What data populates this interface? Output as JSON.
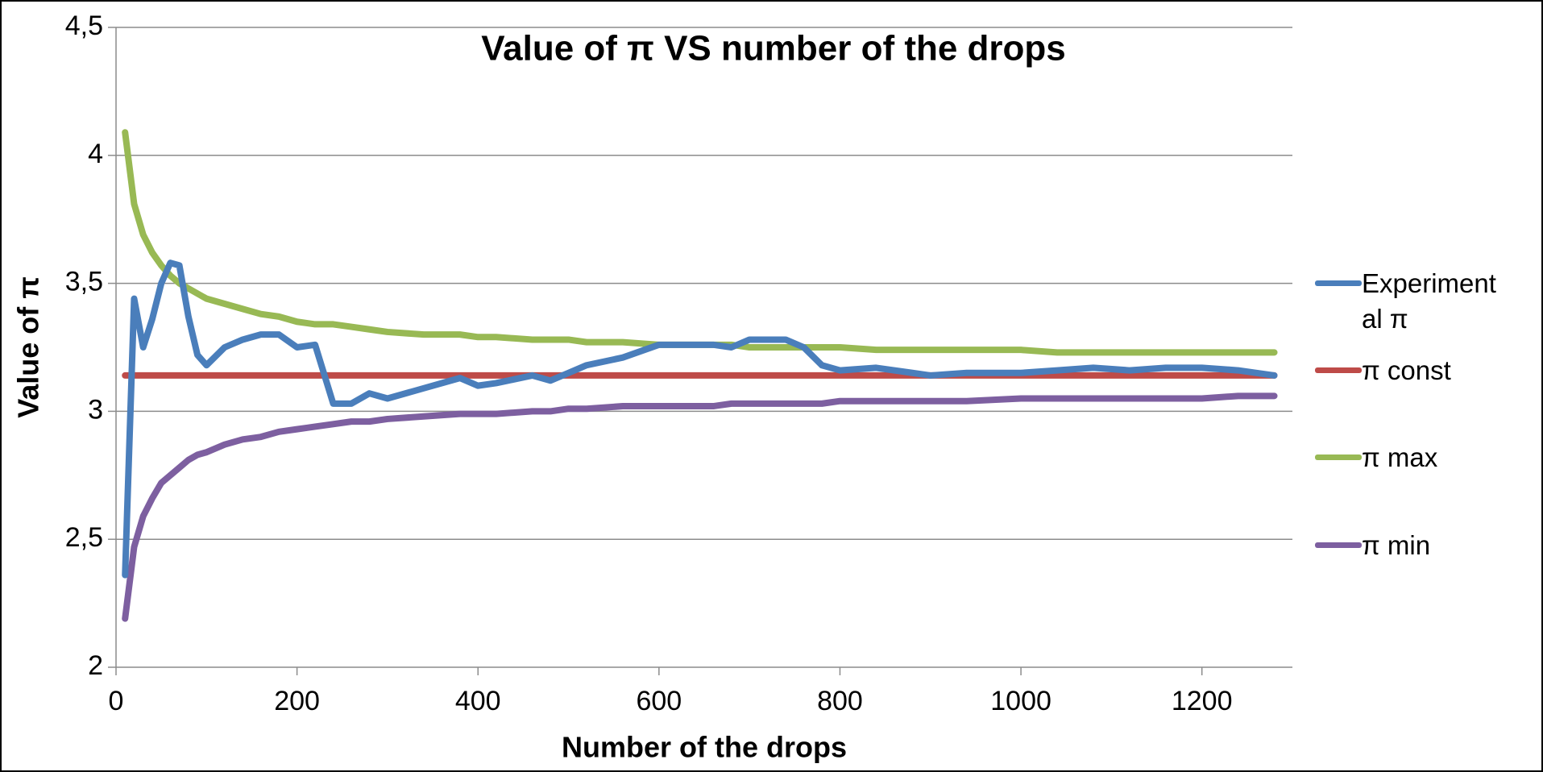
{
  "chart_data": {
    "type": "line",
    "title": "Value of π VS number of the drops",
    "x_label": "Number of the drops",
    "y_label": "Value of π",
    "x": [
      10,
      20,
      30,
      40,
      50,
      60,
      70,
      80,
      90,
      100,
      120,
      140,
      160,
      180,
      200,
      220,
      240,
      260,
      280,
      300,
      340,
      380,
      400,
      420,
      460,
      480,
      500,
      520,
      560,
      600,
      640,
      660,
      680,
      700,
      740,
      760,
      780,
      800,
      840,
      880,
      900,
      940,
      1000,
      1040,
      1080,
      1120,
      1160,
      1200,
      1240,
      1280
    ],
    "series": [
      {
        "name": "Experimental π",
        "color": "#4a7ebb",
        "values": [
          2.36,
          3.44,
          3.25,
          3.36,
          3.5,
          3.58,
          3.57,
          3.37,
          3.22,
          3.18,
          3.25,
          3.28,
          3.3,
          3.3,
          3.25,
          3.26,
          3.03,
          3.03,
          3.07,
          3.05,
          3.09,
          3.13,
          3.1,
          3.11,
          3.14,
          3.12,
          3.15,
          3.18,
          3.21,
          3.26,
          3.26,
          3.26,
          3.25,
          3.28,
          3.28,
          3.25,
          3.18,
          3.16,
          3.17,
          3.15,
          3.14,
          3.15,
          3.15,
          3.16,
          3.17,
          3.16,
          3.17,
          3.17,
          3.16,
          3.14
        ]
      },
      {
        "name": "π const",
        "color": "#be4b48",
        "values": [
          3.14,
          3.14,
          3.14,
          3.14,
          3.14,
          3.14,
          3.14,
          3.14,
          3.14,
          3.14,
          3.14,
          3.14,
          3.14,
          3.14,
          3.14,
          3.14,
          3.14,
          3.14,
          3.14,
          3.14,
          3.14,
          3.14,
          3.14,
          3.14,
          3.14,
          3.14,
          3.14,
          3.14,
          3.14,
          3.14,
          3.14,
          3.14,
          3.14,
          3.14,
          3.14,
          3.14,
          3.14,
          3.14,
          3.14,
          3.14,
          3.14,
          3.14,
          3.14,
          3.14,
          3.14,
          3.14,
          3.14,
          3.14,
          3.14,
          3.14
        ]
      },
      {
        "name": "π max",
        "color": "#98b954",
        "values": [
          4.09,
          3.81,
          3.69,
          3.62,
          3.57,
          3.53,
          3.5,
          3.48,
          3.46,
          3.44,
          3.42,
          3.4,
          3.38,
          3.37,
          3.35,
          3.34,
          3.34,
          3.33,
          3.32,
          3.31,
          3.3,
          3.3,
          3.29,
          3.29,
          3.28,
          3.28,
          3.28,
          3.27,
          3.27,
          3.26,
          3.26,
          3.26,
          3.26,
          3.25,
          3.25,
          3.25,
          3.25,
          3.25,
          3.24,
          3.24,
          3.24,
          3.24,
          3.24,
          3.23,
          3.23,
          3.23,
          3.23,
          3.23,
          3.23,
          3.23
        ]
      },
      {
        "name": "π min",
        "color": "#7d5fa0",
        "values": [
          2.19,
          2.47,
          2.59,
          2.66,
          2.72,
          2.75,
          2.78,
          2.81,
          2.83,
          2.84,
          2.87,
          2.89,
          2.9,
          2.92,
          2.93,
          2.94,
          2.95,
          2.96,
          2.96,
          2.97,
          2.98,
          2.99,
          2.99,
          2.99,
          3.0,
          3.0,
          3.01,
          3.01,
          3.02,
          3.02,
          3.02,
          3.02,
          3.03,
          3.03,
          3.03,
          3.03,
          3.03,
          3.04,
          3.04,
          3.04,
          3.04,
          3.04,
          3.05,
          3.05,
          3.05,
          3.05,
          3.05,
          3.05,
          3.06,
          3.06
        ]
      }
    ],
    "xlim": [
      0,
      1300
    ],
    "xticks": [
      0,
      200,
      400,
      600,
      800,
      1000,
      1200
    ],
    "ylim": [
      2,
      4.5
    ],
    "yticks": [
      2,
      {
        "value": 2.5,
        "label": "2,5"
      },
      3,
      {
        "value": 3.5,
        "label": "3,5"
      },
      4,
      {
        "value": 4.5,
        "label": "4,5"
      }
    ],
    "grid": true,
    "legend": "right"
  }
}
